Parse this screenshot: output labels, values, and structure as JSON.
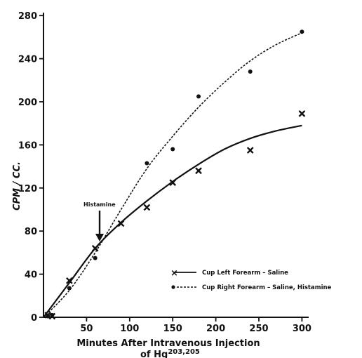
{
  "chart_data": {
    "type": "line",
    "xlabel": "Minutes After Intravenous Injection",
    "xlabel_line2": "of Hg",
    "xlabel_superscript": "203,205",
    "ylabel": "CPM / CC.",
    "xlim": [
      0,
      310
    ],
    "ylim": [
      0,
      280
    ],
    "x_ticks": [
      50,
      100,
      150,
      200,
      250,
      300
    ],
    "y_ticks": [
      0,
      40,
      80,
      120,
      160,
      200,
      240,
      280
    ],
    "x_tick_labels": [
      "50",
      "100",
      "150",
      "200",
      "250",
      "300"
    ],
    "y_tick_labels": [
      "0",
      "40",
      "80",
      "120",
      "160",
      "200",
      "240",
      "280"
    ],
    "annotation": {
      "text": "Histamine",
      "x": 60
    },
    "legend_position": "right-middle",
    "series": [
      {
        "name": "Cup Left Forearm – Saline",
        "marker": "x",
        "line_style": "solid",
        "color": "#111111",
        "points": [
          [
            5,
            2
          ],
          [
            10,
            1
          ],
          [
            30,
            34
          ],
          [
            60,
            64
          ],
          [
            90,
            87
          ],
          [
            120,
            102
          ],
          [
            150,
            125
          ],
          [
            180,
            136
          ],
          [
            240,
            155
          ],
          [
            300,
            189
          ]
        ],
        "curve": [
          [
            0,
            0
          ],
          [
            30,
            32
          ],
          [
            60,
            64
          ],
          [
            90,
            88
          ],
          [
            120,
            108
          ],
          [
            150,
            126
          ],
          [
            180,
            142
          ],
          [
            210,
            156
          ],
          [
            240,
            166
          ],
          [
            270,
            173
          ],
          [
            300,
            178
          ]
        ]
      },
      {
        "name": "Cup Right Forearm – Saline, Histamine",
        "marker": "dot",
        "line_style": "dashed",
        "color": "#111111",
        "points": [
          [
            5,
            1
          ],
          [
            10,
            2
          ],
          [
            30,
            27
          ],
          [
            60,
            55
          ],
          [
            120,
            143
          ],
          [
            150,
            156
          ],
          [
            180,
            205
          ],
          [
            240,
            228
          ],
          [
            300,
            265
          ]
        ],
        "curve": [
          [
            0,
            0
          ],
          [
            30,
            25
          ],
          [
            60,
            60
          ],
          [
            90,
            100
          ],
          [
            120,
            138
          ],
          [
            150,
            168
          ],
          [
            180,
            195
          ],
          [
            210,
            218
          ],
          [
            240,
            238
          ],
          [
            270,
            253
          ],
          [
            300,
            264
          ]
        ]
      }
    ]
  }
}
